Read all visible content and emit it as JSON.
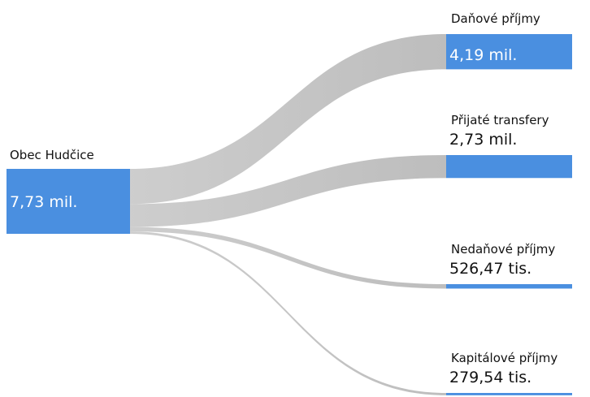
{
  "chart_data": {
    "type": "sankey",
    "source": {
      "name": "Obec Hudčice",
      "value": 7730000,
      "value_label": "7,73 mil."
    },
    "targets": {
      "names": [
        "Daňové příjmy",
        "Přijaté transfery",
        "Nedaňové příjmy",
        "Kapitálové příjmy"
      ],
      "values": [
        4190000,
        2730000,
        526470,
        279540
      ],
      "value_labels": [
        "4,19 mil.",
        "2,73 mil.",
        "526,47 tis.",
        "279,54 tis."
      ]
    },
    "color": "#4a8fe0",
    "link_color": "#bdbdbd"
  }
}
